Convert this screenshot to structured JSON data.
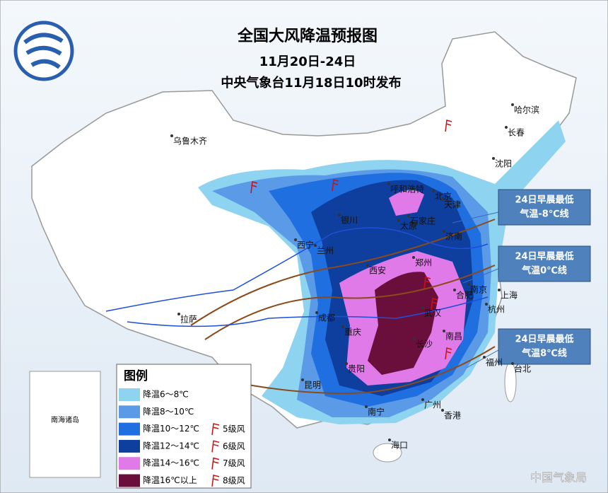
{
  "header": {
    "title": "全国大风降温预报图",
    "period": "11月20日-24日",
    "issuer": "中央气象台11月18日10时发布"
  },
  "cities": [
    "乌鲁木齐",
    "哈尔滨",
    "长春",
    "沈阳",
    "呼和浩特",
    "北京",
    "天津",
    "石家庄",
    "银川",
    "太原",
    "济南",
    "西宁",
    "兰州",
    "西安",
    "郑州",
    "南京",
    "合肥",
    "上海",
    "武汉",
    "杭州",
    "成都",
    "重庆",
    "拉萨",
    "长沙",
    "南昌",
    "贵阳",
    "福州",
    "台北",
    "昆明",
    "南宁",
    "广州",
    "香港",
    "海口"
  ],
  "inset": {
    "label": "南海诸岛"
  },
  "callouts": [
    {
      "line1": "24日早晨最低",
      "line2": "气温-8℃线"
    },
    {
      "line1": "24日早晨最低",
      "line2": "气温0℃线"
    },
    {
      "line1": "24日早晨最低",
      "line2": "气温8℃线"
    }
  ],
  "legend": {
    "title": "图例",
    "cooling": [
      {
        "label": "降温6～8℃",
        "color": "#8ed3f0"
      },
      {
        "label": "降温8～10℃",
        "color": "#5a9ae6"
      },
      {
        "label": "降温10～12℃",
        "color": "#1f6fe0"
      },
      {
        "label": "降温12～14℃",
        "color": "#0f3f9e"
      },
      {
        "label": "降温14～16℃",
        "color": "#e07ae8"
      },
      {
        "label": "降温16℃以上",
        "color": "#6a0f3c"
      }
    ],
    "wind": [
      "5级风",
      "6级风",
      "7级风",
      "8级风"
    ]
  },
  "watermark": "中国气象局"
}
